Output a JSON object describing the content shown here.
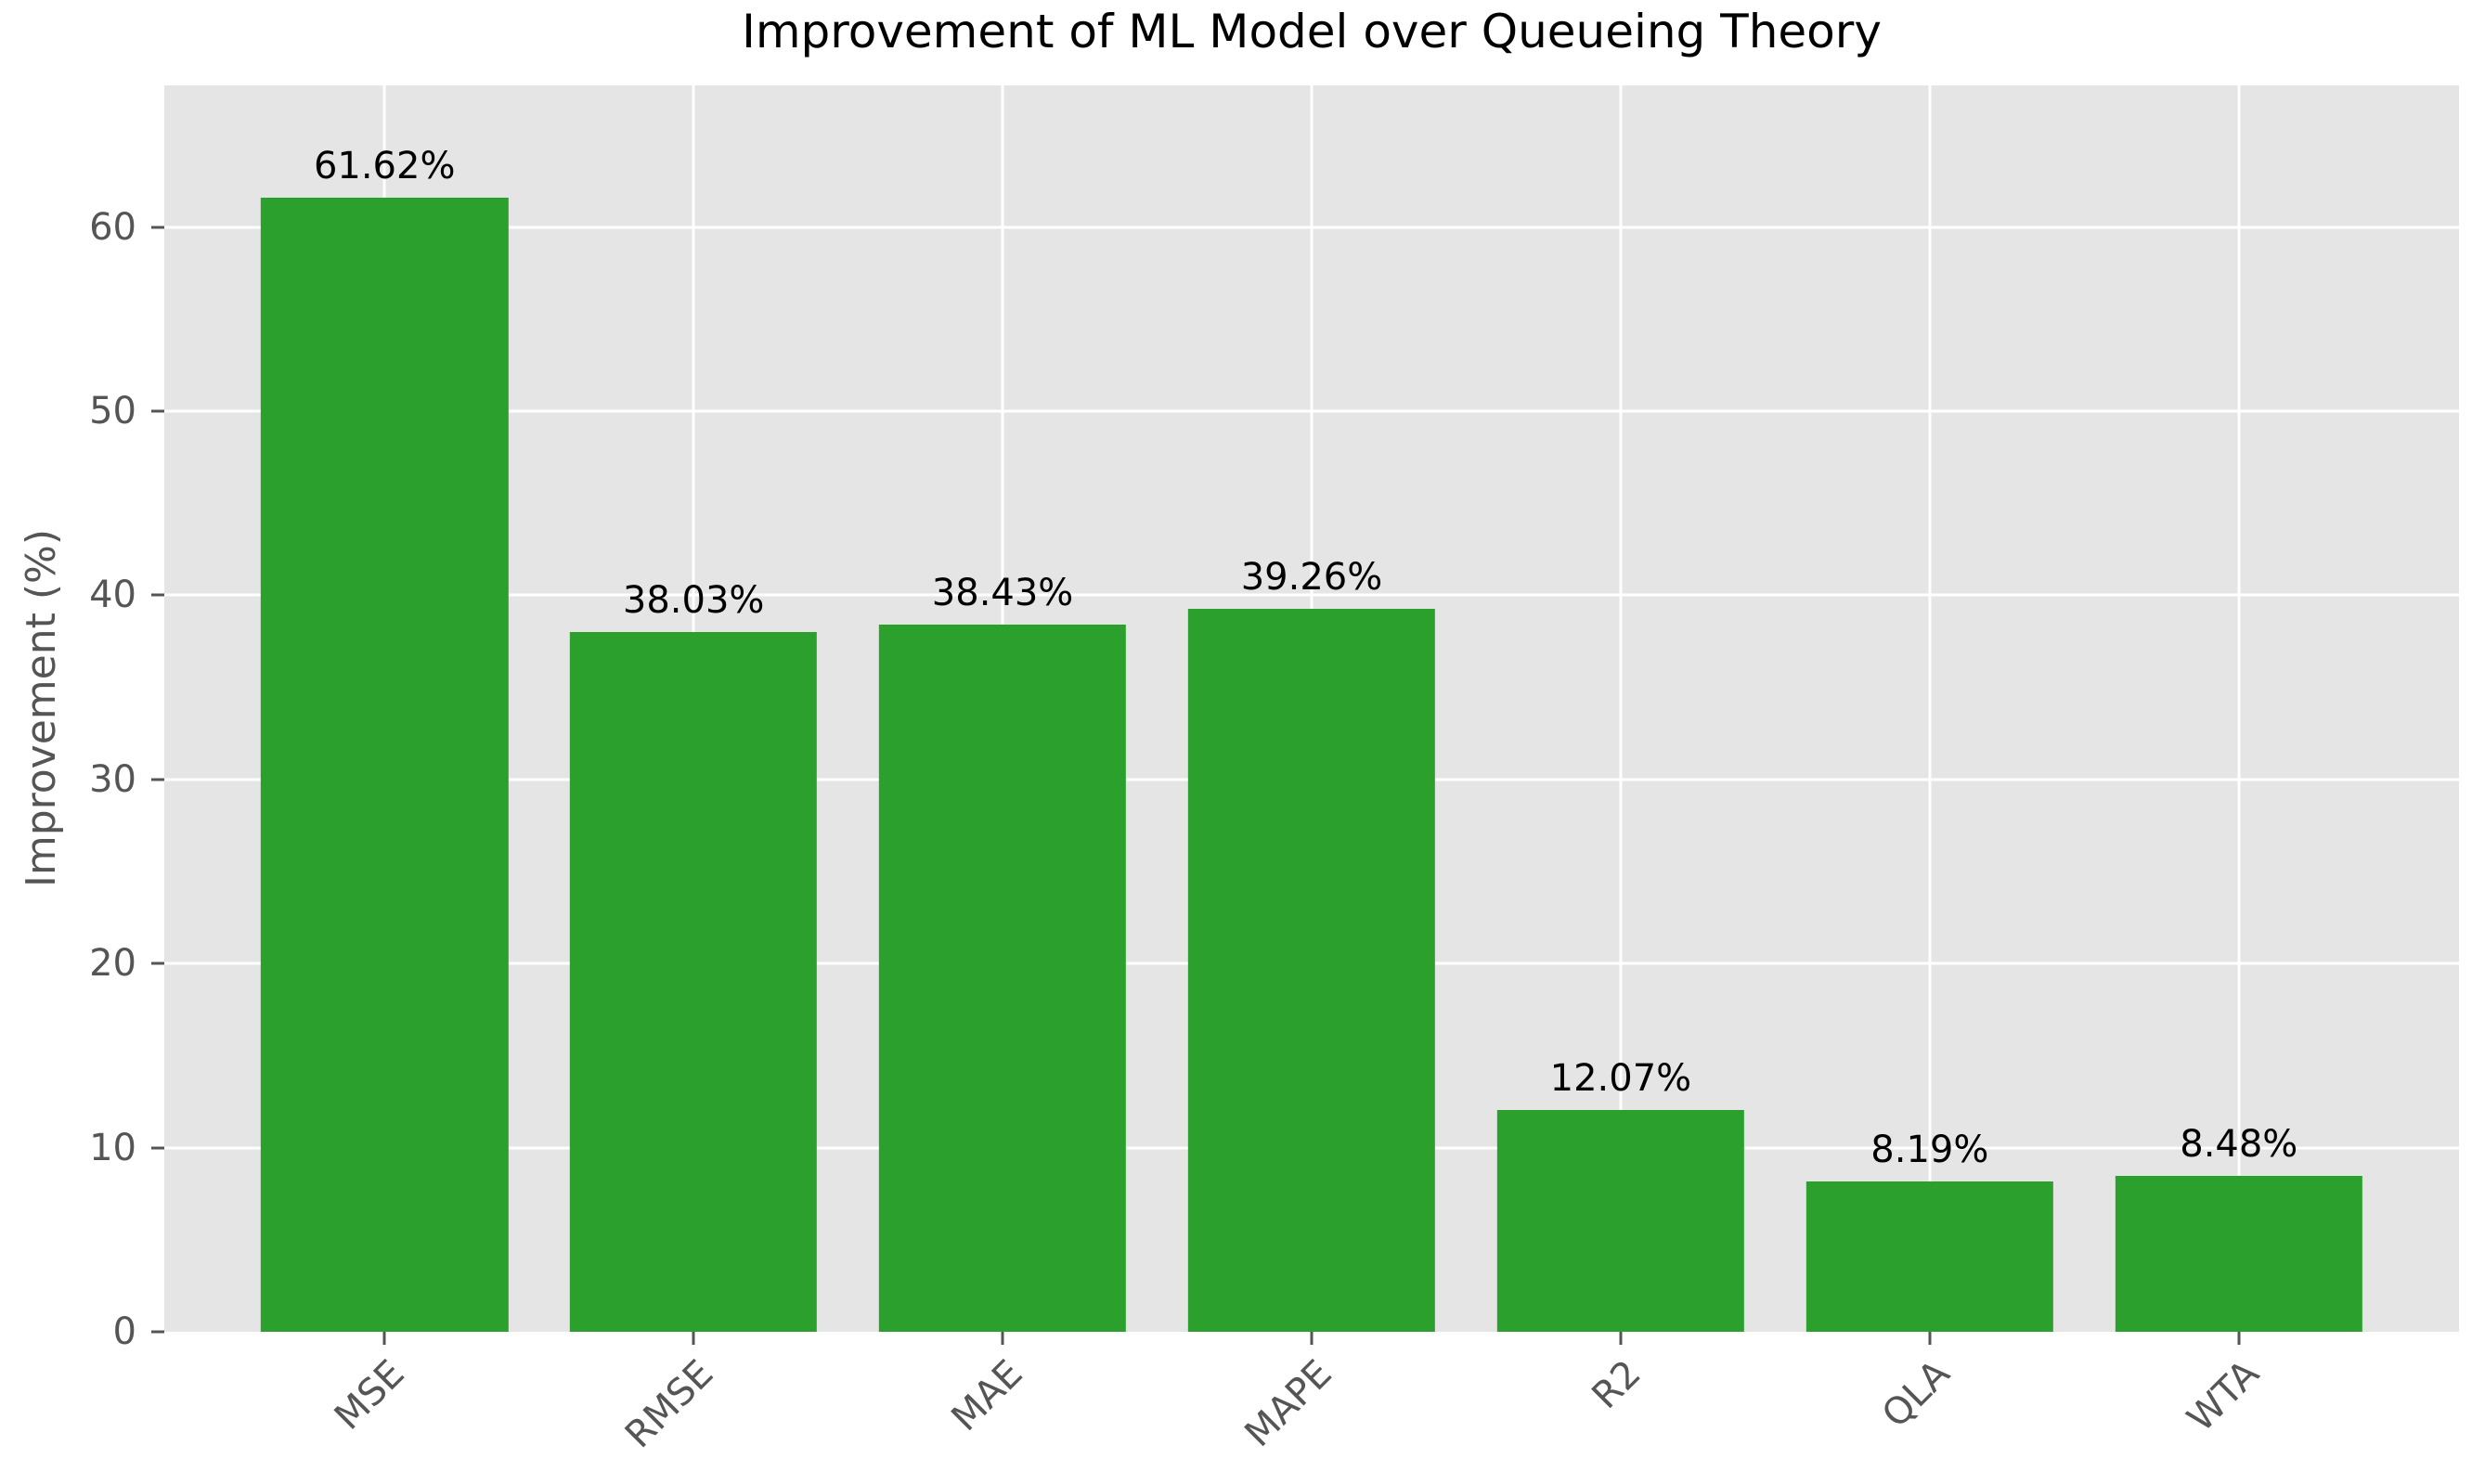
{
  "chart_data": {
    "type": "bar",
    "title": "Improvement of ML Model over Queueing Theory",
    "xlabel": "",
    "ylabel": "Improvement (%)",
    "categories": [
      "MSE",
      "RMSE",
      "MAE",
      "MAPE",
      "R2",
      "QLA",
      "WTA"
    ],
    "values": [
      61.62,
      38.03,
      38.43,
      39.26,
      12.07,
      8.19,
      8.48
    ],
    "value_labels": [
      "61.62%",
      "38.03%",
      "38.43%",
      "39.26%",
      "12.07%",
      "8.19%",
      "8.48%"
    ],
    "yticks": [
      0,
      10,
      20,
      30,
      40,
      50,
      60
    ],
    "ylim": [
      0,
      67.7
    ],
    "xlim": [
      -0.7125,
      6.7125
    ],
    "bar_width_units": 0.8,
    "x_tick_rotation_deg": 45,
    "grid": true,
    "legend": false,
    "style": {
      "bar_color": "#2ca02c",
      "plot_background": "#e5e5e5",
      "grid_color": "#ffffff",
      "tick_color": "#555555",
      "tick_label_color": "#555555",
      "axis_label_color": "#555555",
      "title_color": "#000000",
      "value_label_color": "#000000",
      "figure_background": "#ffffff"
    }
  }
}
